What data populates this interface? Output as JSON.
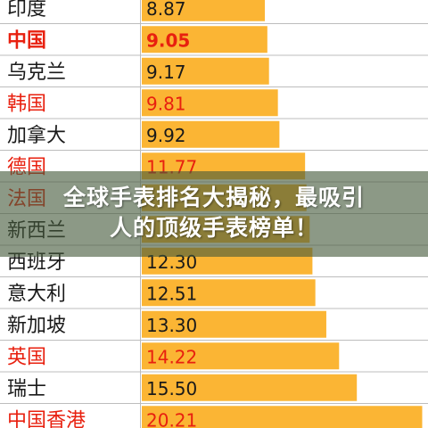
{
  "banner": {
    "line1": "全球手表排名大揭秘，最吸引",
    "line2": "人的顶级手表榜单！"
  },
  "colors": {
    "bar": "#FBB534",
    "highlight": "#E8200F",
    "text": "#1a1a1a",
    "grid": "#bdbdbd"
  },
  "chart_data": {
    "type": "bar",
    "orientation": "horizontal",
    "categories": [
      "印度",
      "中国",
      "乌克兰",
      "韩国",
      "加拿大",
      "德国",
      "法国",
      "新西兰",
      "西班牙",
      "意大利",
      "新加坡",
      "英国",
      "瑞士",
      "中国香港"
    ],
    "values": [
      8.87,
      9.05,
      9.17,
      9.81,
      9.92,
      11.77,
      11.87,
      12.1,
      12.3,
      12.51,
      13.3,
      14.22,
      15.5,
      20.21
    ],
    "value_labels": [
      "8.87",
      "9.05",
      "9.17",
      "9.81",
      "9.92",
      "11.77",
      "",
      "",
      "12.30",
      "12.51",
      "13.30",
      "14.22",
      "15.50",
      "20.21"
    ],
    "highlighted": [
      "中国",
      "韩国",
      "德国",
      "法国",
      "英国",
      "中国香港"
    ],
    "bold": [
      "中国"
    ],
    "xlim": [
      0,
      20.5
    ]
  }
}
